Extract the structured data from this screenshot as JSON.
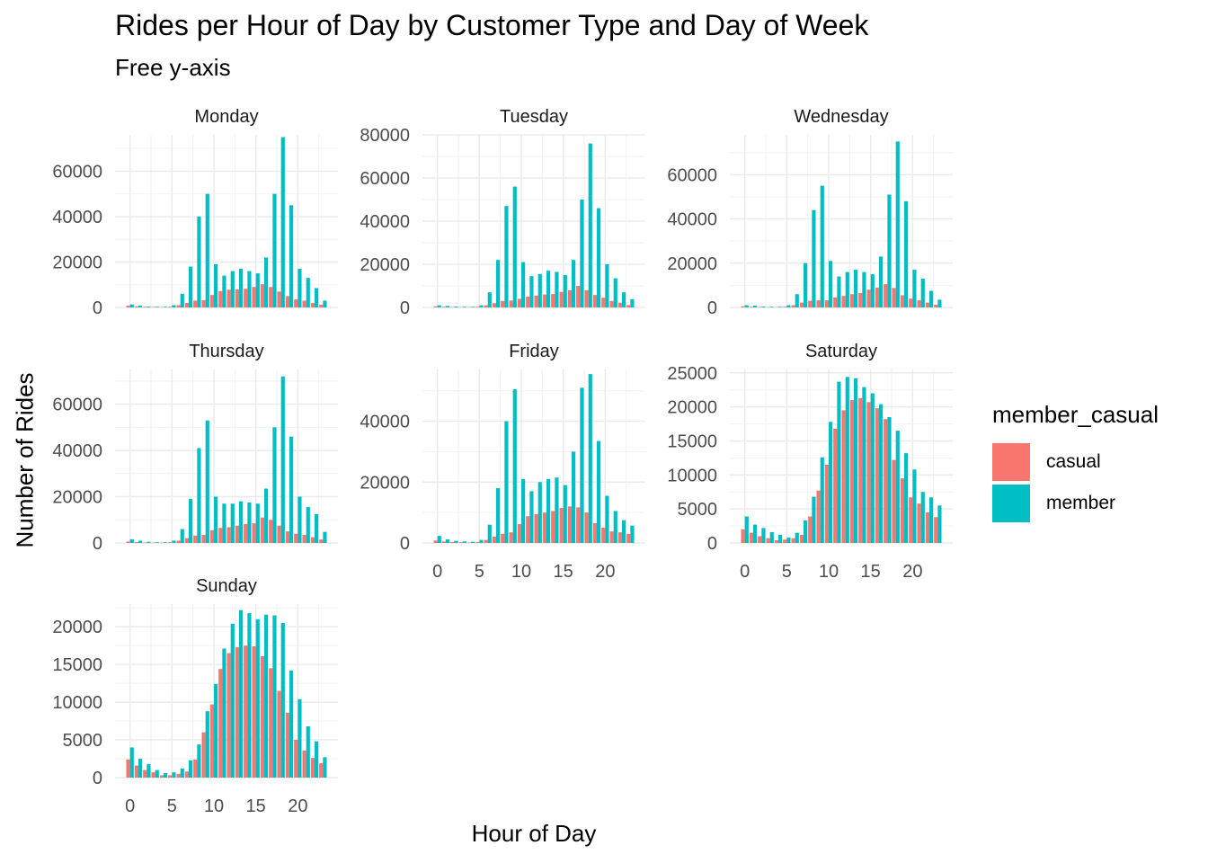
{
  "header": {
    "title": "Rides per Hour of Day by Customer Type and Day of Week",
    "subtitle": "Free y-axis"
  },
  "legend": {
    "title": "member_casual",
    "items": [
      {
        "label": "casual",
        "color": "#F8766D"
      },
      {
        "label": "member",
        "color": "#00BFC4"
      }
    ]
  },
  "chart_data": {
    "type": "bar",
    "title": "Rides per Hour of Day by Customer Type and Day of Week",
    "subtitle": "Free y-axis",
    "xlabel": "Hour of Day",
    "ylabel": "Number of Rides",
    "xlim": [
      0,
      23
    ],
    "x_ticks": [
      0,
      5,
      10,
      15,
      20
    ],
    "grid": true,
    "legend_position": "right",
    "series_names": [
      "casual",
      "member"
    ],
    "facets": [
      {
        "day": "Monday",
        "y_ticks": [
          0,
          20000,
          40000,
          60000
        ],
        "ylim": [
          0,
          76000
        ],
        "casual": [
          800,
          500,
          300,
          200,
          150,
          300,
          1000,
          2000,
          3000,
          3200,
          5500,
          7200,
          7800,
          8000,
          8200,
          9000,
          10200,
          9000,
          7000,
          5000,
          3500,
          3000,
          2000,
          1200
        ],
        "member": [
          1300,
          800,
          400,
          300,
          300,
          1000,
          6000,
          18000,
          40000,
          50000,
          19000,
          14000,
          16000,
          17000,
          16000,
          15000,
          22000,
          50000,
          75000,
          45000,
          17000,
          13000,
          8500,
          3000
        ]
      },
      {
        "day": "Tuesday",
        "y_ticks": [
          0,
          20000,
          40000,
          60000,
          80000
        ],
        "ylim": [
          0,
          80000
        ],
        "casual": [
          500,
          300,
          200,
          150,
          150,
          300,
          1000,
          2000,
          3000,
          3200,
          4000,
          5000,
          5500,
          6000,
          6200,
          7200,
          8000,
          10000,
          8000,
          5800,
          4500,
          3000,
          2200,
          1100
        ],
        "member": [
          1000,
          700,
          400,
          300,
          300,
          1000,
          7000,
          22000,
          47000,
          56000,
          21000,
          14500,
          15500,
          17000,
          16500,
          15000,
          22000,
          50000,
          76000,
          46000,
          20000,
          13500,
          7000,
          3800
        ]
      },
      {
        "day": "Wednesday",
        "y_ticks": [
          0,
          20000,
          40000,
          60000
        ],
        "ylim": [
          0,
          78000
        ],
        "casual": [
          500,
          300,
          200,
          150,
          150,
          300,
          1000,
          2200,
          3000,
          3200,
          3200,
          4500,
          5200,
          6000,
          6500,
          8000,
          9000,
          10500,
          8800,
          5500,
          4000,
          3200,
          2200,
          1200
        ],
        "member": [
          1000,
          800,
          400,
          300,
          300,
          1000,
          6000,
          20000,
          44000,
          55000,
          21000,
          14000,
          16000,
          17000,
          16000,
          15000,
          23000,
          51000,
          75000,
          48000,
          17000,
          13000,
          7500,
          3500
        ]
      },
      {
        "day": "Thursday",
        "y_ticks": [
          0,
          20000,
          40000,
          60000
        ],
        "ylim": [
          0,
          75000
        ],
        "casual": [
          600,
          400,
          200,
          150,
          150,
          300,
          1000,
          2100,
          3200,
          3500,
          5500,
          6500,
          6800,
          7500,
          8200,
          8500,
          11000,
          10000,
          7500,
          5000,
          4000,
          3500,
          2500,
          1500
        ],
        "member": [
          1600,
          1000,
          500,
          300,
          300,
          1000,
          6000,
          19000,
          41000,
          53000,
          20000,
          17000,
          17000,
          18000,
          17500,
          17000,
          23500,
          50000,
          72000,
          46000,
          20000,
          15500,
          12500,
          4800
        ]
      },
      {
        "day": "Friday",
        "y_ticks": [
          0,
          20000,
          40000
        ],
        "ylim": [
          0,
          57000
        ],
        "casual": [
          800,
          500,
          300,
          200,
          150,
          300,
          1000,
          2100,
          3000,
          3500,
          6200,
          8800,
          9500,
          10000,
          10500,
          11500,
          12000,
          11700,
          10000,
          6500,
          5000,
          3800,
          3500,
          3000
        ],
        "member": [
          2300,
          1200,
          700,
          500,
          400,
          1000,
          6000,
          18000,
          40000,
          50500,
          21000,
          17000,
          20000,
          21000,
          21500,
          19000,
          30000,
          51000,
          55500,
          33500,
          15500,
          10500,
          7500,
          5700
        ]
      },
      {
        "day": "Saturday",
        "y_ticks": [
          0,
          5000,
          10000,
          15000,
          20000,
          25000
        ],
        "ylim": [
          0,
          25500
        ],
        "casual": [
          2000,
          1500,
          1000,
          700,
          400,
          500,
          700,
          1200,
          3900,
          7700,
          11500,
          16800,
          19500,
          21000,
          21300,
          20700,
          19800,
          18200,
          12200,
          9500,
          6700,
          5800,
          4500,
          3800
        ],
        "member": [
          3900,
          2700,
          2200,
          1600,
          1200,
          800,
          1500,
          3300,
          6800,
          12600,
          17800,
          23700,
          24400,
          24200,
          22900,
          22000,
          20400,
          18500,
          16500,
          13200,
          10800,
          7500,
          6700,
          5500
        ]
      },
      {
        "day": "Sunday",
        "y_ticks": [
          0,
          5000,
          10000,
          15000,
          20000
        ],
        "ylim": [
          0,
          23000
        ],
        "casual": [
          2400,
          1600,
          1000,
          700,
          300,
          300,
          500,
          800,
          2400,
          6000,
          9700,
          14400,
          16500,
          17300,
          17500,
          17400,
          16100,
          14500,
          11500,
          8600,
          5000,
          3600,
          2600,
          1900
        ],
        "member": [
          4000,
          2500,
          1800,
          1000,
          600,
          700,
          1200,
          2300,
          4400,
          8800,
          12400,
          17100,
          20400,
          22200,
          21800,
          21000,
          21600,
          21500,
          20500,
          14200,
          10400,
          6800,
          4800,
          2700
        ]
      }
    ]
  }
}
